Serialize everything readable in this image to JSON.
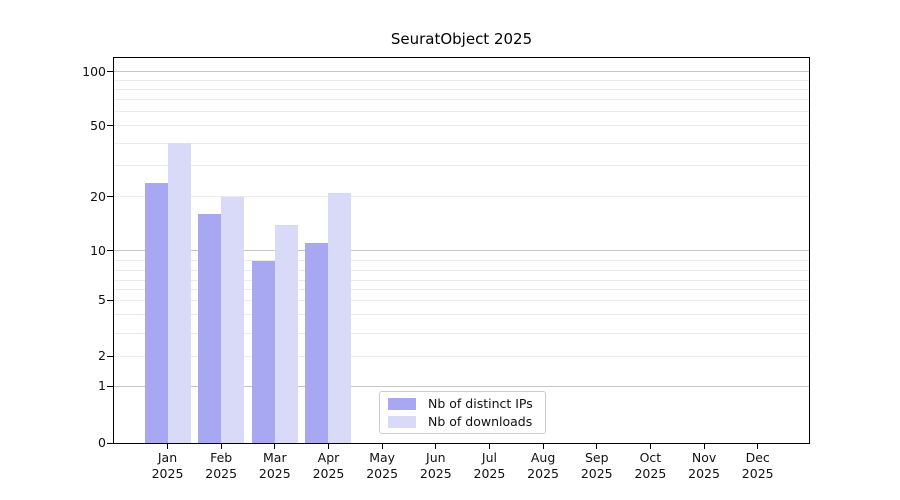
{
  "page": {
    "background": "#ffffff"
  },
  "chart_data": {
    "type": "bar",
    "title": "SeuratObject 2025",
    "x": {
      "months": [
        "Jan",
        "Feb",
        "Mar",
        "Apr",
        "May",
        "Jun",
        "Jul",
        "Aug",
        "Sep",
        "Oct",
        "Nov",
        "Dec"
      ],
      "year": "2025"
    },
    "categories": [
      "Jan 2025",
      "Feb 2025",
      "Mar 2025",
      "Apr 2025",
      "May 2025",
      "Jun 2025",
      "Jul 2025",
      "Aug 2025",
      "Sep 2025",
      "Oct 2025",
      "Nov 2025",
      "Dec 2025"
    ],
    "series": [
      {
        "name": "Nb of distinct IPs",
        "color": "#a7a7f2",
        "values": [
          24,
          16,
          9,
          11,
          0,
          0,
          0,
          0,
          0,
          0,
          0,
          0
        ]
      },
      {
        "name": "Nb of downloads",
        "color": "#d9d9f8",
        "values": [
          40,
          20,
          14,
          21,
          0,
          0,
          0,
          0,
          0,
          0,
          0,
          0
        ]
      }
    ],
    "y_axis": {
      "ticks": [
        0,
        1,
        2,
        5,
        10,
        20,
        50,
        100
      ],
      "scale": "log-like",
      "ylim": [
        0,
        100
      ]
    },
    "gridlines": {
      "major": [
        1,
        10,
        100
      ],
      "minor": [
        2,
        3,
        4,
        5,
        6,
        7,
        8,
        9,
        20,
        30,
        40,
        50,
        60,
        70,
        80,
        90
      ]
    },
    "legend": {
      "position": "bottom-center",
      "entries": [
        "Nb of distinct IPs",
        "Nb of downloads"
      ]
    },
    "grid": true
  },
  "colors": {
    "bar_distinct_ips": "#a7a7f2",
    "bar_downloads": "#d9d9f8",
    "major_grid": "#c6c6c6",
    "minor_grid": "#ebebeb",
    "axis": "#000000",
    "text": "#111111",
    "legend_border": "#cccccc"
  }
}
